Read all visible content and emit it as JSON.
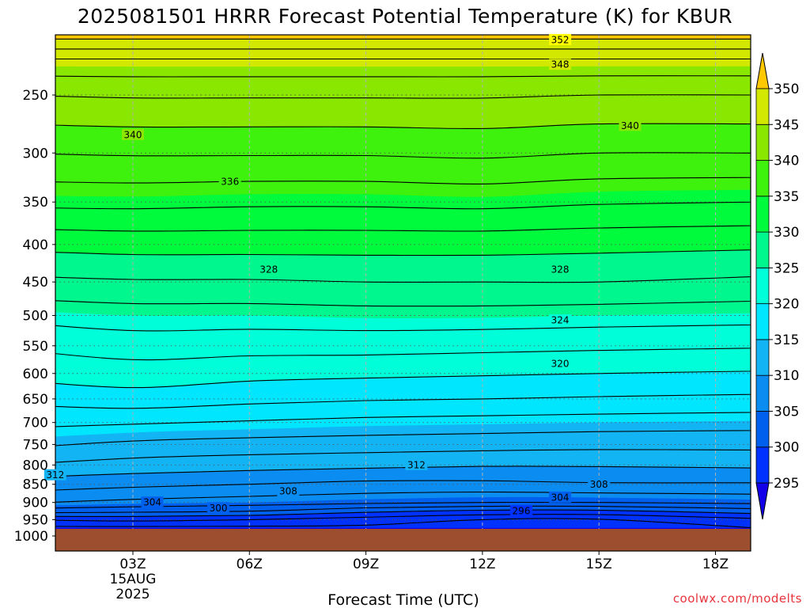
{
  "title": "2025081501 HRRR Forecast Potential Temperature (K) for KBUR",
  "xlabel": "Forecast Time (UTC)",
  "credit": "coolwx.com/modelts",
  "colors": {
    "ground": "#9c4e2e",
    "contour": "#000000",
    "levels": [
      "#1400e8",
      "#0032ff",
      "#0060ee",
      "#0a8cf0",
      "#13b4f4",
      "#00e6ff",
      "#00ffd8",
      "#00f78e",
      "#00fa3c",
      "#3ff20e",
      "#8ae800",
      "#d2e800",
      "#ffff00",
      "#ffc800"
    ]
  },
  "chart_data": {
    "type": "contour",
    "title": "2025081501 HRRR Forecast Potential Temperature (K) for KBUR",
    "xlabel": "Forecast Time (UTC)",
    "ylabel": "",
    "variable": "Potential Temperature (K)",
    "x_ticks": [
      "03Z",
      "06Z",
      "09Z",
      "12Z",
      "15Z",
      "18Z"
    ],
    "x_tick_hours": [
      3,
      6,
      9,
      12,
      15,
      18
    ],
    "x_date_label": [
      "15AUG",
      "2025"
    ],
    "xlim_hours": [
      0,
      19
    ],
    "y_ticks": [
      250,
      300,
      350,
      400,
      450,
      500,
      550,
      600,
      650,
      700,
      750,
      800,
      850,
      900,
      950,
      1000
    ],
    "ylim_hPa": [
      1000,
      200
    ],
    "y_scale": "log",
    "y_inverted": true,
    "grid": "dotted",
    "ground_level_hPa": 975,
    "colorbar_levels": [
      295,
      300,
      305,
      310,
      315,
      320,
      325,
      330,
      335,
      340,
      345,
      350
    ],
    "colorbar_extend": "both",
    "contour_interval": 2,
    "contour_labels": [
      {
        "value": 352,
        "x_hour": 14.0,
        "p_hPa": 210
      },
      {
        "value": 348,
        "x_hour": 14.0,
        "p_hPa": 227
      },
      {
        "value": 340,
        "x_hour": 3.0,
        "p_hPa": 283
      },
      {
        "value": 340,
        "x_hour": 15.8,
        "p_hPa": 275
      },
      {
        "value": 336,
        "x_hour": 5.5,
        "p_hPa": 328
      },
      {
        "value": 328,
        "x_hour": 6.5,
        "p_hPa": 432
      },
      {
        "value": 328,
        "x_hour": 14.0,
        "p_hPa": 432
      },
      {
        "value": 324,
        "x_hour": 14.0,
        "p_hPa": 507
      },
      {
        "value": 320,
        "x_hour": 14.0,
        "p_hPa": 581
      },
      {
        "value": 312,
        "x_hour": 10.3,
        "p_hPa": 799
      },
      {
        "value": 312,
        "x_hour": 1.0,
        "p_hPa": 825
      },
      {
        "value": 308,
        "x_hour": 7.0,
        "p_hPa": 868
      },
      {
        "value": 308,
        "x_hour": 15.0,
        "p_hPa": 850
      },
      {
        "value": 304,
        "x_hour": 3.5,
        "p_hPa": 899
      },
      {
        "value": 304,
        "x_hour": 14.0,
        "p_hPa": 885
      },
      {
        "value": 300,
        "x_hour": 5.2,
        "p_hPa": 915
      },
      {
        "value": 296,
        "x_hour": 13.0,
        "p_hPa": 924
      }
    ],
    "theta_profiles": [
      {
        "x_hour": 0,
        "p_hPa": [
          975,
          950,
          925,
          900,
          850,
          800,
          750,
          700,
          650,
          600,
          550,
          500,
          450,
          400,
          350,
          300,
          250,
          225,
          200
        ],
        "theta": [
          295.5,
          298,
          303,
          306.5,
          309,
          312,
          314.5,
          316.5,
          318.5,
          320.5,
          322.2,
          324.5,
          327.5,
          330.5,
          334.5,
          338,
          342,
          345.5,
          353
        ]
      },
      {
        "x_hour": 3,
        "p_hPa": [
          975,
          950,
          925,
          900,
          850,
          800,
          750,
          700,
          650,
          600,
          550,
          500,
          450,
          400,
          350,
          300,
          250,
          225,
          200
        ],
        "theta": [
          295.5,
          298.5,
          302.5,
          305.5,
          308.5,
          311.2,
          313.6,
          316.2,
          319.2,
          321,
          323,
          325,
          327.8,
          330.8,
          334.6,
          338.2,
          342.2,
          345.5,
          353
        ]
      },
      {
        "x_hour": 6,
        "p_hPa": [
          975,
          950,
          925,
          900,
          850,
          800,
          750,
          700,
          650,
          600,
          550,
          500,
          450,
          400,
          350,
          300,
          250,
          225,
          200
        ],
        "theta": [
          295.5,
          298,
          302,
          305,
          308,
          310.8,
          313.2,
          315.8,
          318.6,
          320.6,
          322.8,
          325,
          327.8,
          330.8,
          334.4,
          338.2,
          342.2,
          345.5,
          353
        ]
      },
      {
        "x_hour": 9,
        "p_hPa": [
          975,
          950,
          925,
          900,
          850,
          800,
          750,
          700,
          650,
          600,
          550,
          500,
          450,
          400,
          350,
          300,
          250,
          225,
          200
        ],
        "theta": [
          295.5,
          297,
          300.5,
          304.5,
          307.5,
          310.5,
          313,
          315.4,
          318.2,
          320.4,
          322.8,
          325.2,
          328,
          330.8,
          334.4,
          338.2,
          342.2,
          345.5,
          353
        ]
      },
      {
        "x_hour": 12,
        "p_hPa": [
          975,
          950,
          925,
          900,
          850,
          800,
          750,
          700,
          650,
          600,
          550,
          500,
          450,
          400,
          350,
          300,
          250,
          225,
          200
        ],
        "theta": [
          295,
          296,
          299.5,
          304,
          307.5,
          310.2,
          312.8,
          315.2,
          318,
          320.2,
          322.6,
          325.2,
          328,
          330.8,
          334.6,
          338.4,
          342.2,
          345.5,
          353
        ]
      },
      {
        "x_hour": 15,
        "p_hPa": [
          975,
          950,
          925,
          900,
          850,
          800,
          750,
          700,
          650,
          600,
          550,
          500,
          450,
          400,
          350,
          300,
          250,
          225,
          200
        ],
        "theta": [
          295,
          295.8,
          299.5,
          304,
          307.8,
          310.2,
          312.6,
          315,
          317.8,
          320,
          322.4,
          325,
          328,
          330.6,
          334.2,
          338,
          342,
          345.5,
          353
        ]
      },
      {
        "x_hour": 19,
        "p_hPa": [
          975,
          950,
          925,
          900,
          850,
          800,
          750,
          700,
          650,
          600,
          550,
          500,
          450,
          400,
          350,
          300,
          250,
          225,
          200
        ],
        "theta": [
          296,
          297.5,
          301,
          304.5,
          307.8,
          310.4,
          312.6,
          314.8,
          317.6,
          319.8,
          322.2,
          324.8,
          327.6,
          330.4,
          334,
          338,
          342,
          345.5,
          353
        ]
      }
    ]
  }
}
